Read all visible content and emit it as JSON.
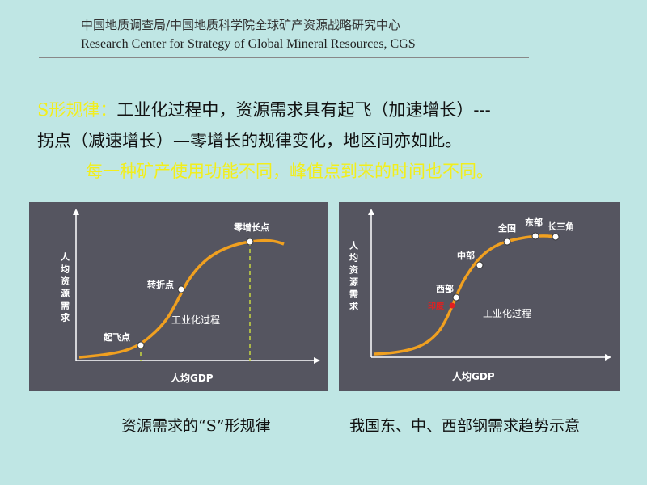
{
  "header": {
    "chinese": "中国地质调查局/中国地质科学院全球矿产资源战略研究中心",
    "english": "Research Center for Strategy of Global Mineral Resources, CGS"
  },
  "statement": {
    "highlight": "S形规律：",
    "line1_rest": "工业化过程中，资源需求具有起飞（加速增长）---",
    "line2": "拐点（减速增长）—零增长的规律变化，地区间亦如此。",
    "line3": "每一种矿产使用功能不同，峰值点到来的时间也不同。"
  },
  "left_diagram": {
    "y_axis_label": "人均资源需求",
    "x_axis_label": "人均GDP",
    "curve_label": "工业化过程",
    "points": [
      {
        "label": "起飞点"
      },
      {
        "label": "转折点"
      },
      {
        "label": "零增长点"
      }
    ],
    "caption": "资源需求的“S”形规律"
  },
  "right_diagram": {
    "y_axis_label": "人均资源需求",
    "x_axis_label": "人均GDP",
    "curve_label": "工业化过程",
    "points": [
      {
        "label": "印度",
        "highlight": true
      },
      {
        "label": "西部"
      },
      {
        "label": "中部"
      },
      {
        "label": "全国"
      },
      {
        "label": "东部"
      },
      {
        "label": "长三角"
      }
    ],
    "caption": "我国东、中、西部钢需求趋势示意"
  },
  "colors": {
    "background": "#bfe6e4",
    "panel": "#555560",
    "curve": "#f0a020",
    "highlight_text": "#f2ee1c",
    "guide_line": "#c8d840",
    "india_point": "#e02020"
  }
}
